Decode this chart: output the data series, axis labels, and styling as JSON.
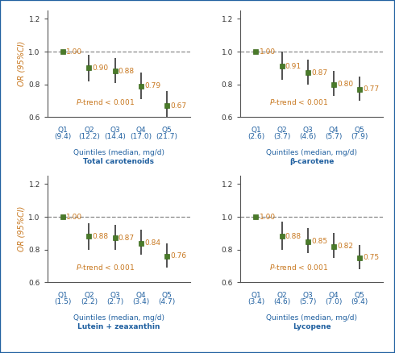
{
  "panels": [
    {
      "title": "Total carotenoids",
      "xlabel_line1": "Quintiles (median, mg/d)",
      "xlabel_line2": "Total carotenoids",
      "or_values": [
        1.0,
        0.9,
        0.88,
        0.79,
        0.67
      ],
      "ci_lower": [
        1.0,
        0.82,
        0.81,
        0.71,
        0.59
      ],
      "ci_upper": [
        1.0,
        0.98,
        0.96,
        0.87,
        0.76
      ],
      "q_top": [
        "Q1",
        "Q2",
        "Q3",
        "Q4",
        "Q5"
      ],
      "q_bot": [
        "(9.4)",
        "(12.2)",
        "(14.4)",
        "(17.0)",
        "(21.7)"
      ],
      "p_trend_x": 1.5,
      "p_trend_y": 0.695
    },
    {
      "title": "β-carotene",
      "xlabel_line1": "Quintiles (median, mg/d)",
      "xlabel_line2": "β-carotene",
      "or_values": [
        1.0,
        0.91,
        0.87,
        0.8,
        0.77
      ],
      "ci_lower": [
        1.0,
        0.83,
        0.8,
        0.73,
        0.7
      ],
      "ci_upper": [
        1.0,
        1.0,
        0.95,
        0.88,
        0.85
      ],
      "q_top": [
        "Q1",
        "Q2",
        "Q3",
        "Q4",
        "Q5"
      ],
      "q_bot": [
        "(2.6)",
        "(3.7)",
        "(4.6)",
        "(5.7)",
        "(7.9)"
      ],
      "p_trend_x": 1.5,
      "p_trend_y": 0.695
    },
    {
      "title": "Lutein + zeaxanthin",
      "xlabel_line1": "Quintiles (median, mg/d)",
      "xlabel_line2": "Lutein + zeaxanthin",
      "or_values": [
        1.0,
        0.88,
        0.87,
        0.84,
        0.76
      ],
      "ci_lower": [
        1.0,
        0.8,
        0.8,
        0.77,
        0.69
      ],
      "ci_upper": [
        1.0,
        0.96,
        0.95,
        0.92,
        0.84
      ],
      "q_top": [
        "Q1",
        "Q2",
        "Q3",
        "Q4",
        "Q5"
      ],
      "q_bot": [
        "(1.5)",
        "(2.2)",
        "(2.7)",
        "(3.4)",
        "(4.7)"
      ],
      "p_trend_x": 1.5,
      "p_trend_y": 0.695
    },
    {
      "title": "Lycopene",
      "xlabel_line1": "Quintiles (median, mg/d)",
      "xlabel_line2": "Lycopene",
      "or_values": [
        1.0,
        0.88,
        0.85,
        0.82,
        0.75
      ],
      "ci_lower": [
        1.0,
        0.8,
        0.78,
        0.75,
        0.68
      ],
      "ci_upper": [
        1.0,
        0.97,
        0.93,
        0.9,
        0.83
      ],
      "q_top": [
        "Q1",
        "Q2",
        "Q3",
        "Q4",
        "Q5"
      ],
      "q_bot": [
        "(3.4)",
        "(4.6)",
        "(5.7)",
        "(7.0)",
        "(9.4)"
      ],
      "p_trend_x": 1.5,
      "p_trend_y": 0.695
    }
  ],
  "marker_color": "#4a7a2a",
  "marker_edge_color": "#3a6a1a",
  "ci_color": "#222222",
  "label_color_or": "#c87820",
  "label_color_q": "#2060a0",
  "ptrend_color": "#c87820",
  "ref_line_color": "#888888",
  "background_color": "#ffffff",
  "border_color": "#2060a0",
  "ylabel_color": "#c87820",
  "ytick_color": "#333333",
  "ylim": [
    0.6,
    1.25
  ],
  "yticks": [
    0.6,
    0.8,
    1.0,
    1.2
  ],
  "xlim": [
    0.4,
    5.9
  ],
  "label_fontsize": 6.5,
  "tick_fontsize": 6.5,
  "or_fontsize": 6.5,
  "ptrend_fontsize": 6.5,
  "ylabel_fontsize": 7,
  "marker_size": 5
}
